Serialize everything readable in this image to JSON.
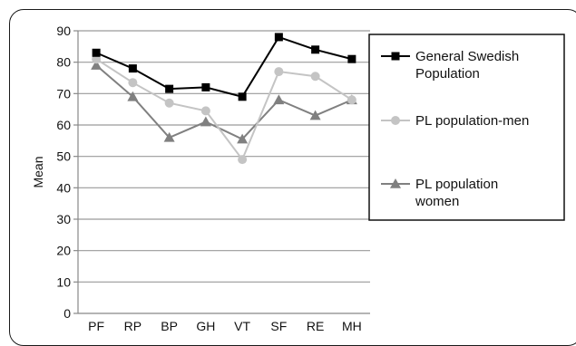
{
  "chart_data": {
    "type": "line",
    "title": "",
    "xlabel": "",
    "ylabel": "Mean",
    "ylim": [
      0,
      90
    ],
    "yticks": [
      0,
      10,
      20,
      30,
      40,
      50,
      60,
      70,
      80,
      90
    ],
    "grid": true,
    "legend_position": "right",
    "categories": [
      "PF",
      "RP",
      "BP",
      "GH",
      "VT",
      "SF",
      "RE",
      "MH"
    ],
    "series": [
      {
        "name": "General Swedish Population",
        "legend_lines": [
          "General Swedish",
          "Population"
        ],
        "color": "#000000",
        "marker": "square",
        "values": [
          83,
          78,
          71.5,
          72,
          69,
          88,
          84,
          81
        ]
      },
      {
        "name": "PL population-men",
        "legend_lines": [
          "PL population-men"
        ],
        "color": "#c4c4c4",
        "marker": "circle",
        "values": [
          81,
          73.5,
          67,
          64.5,
          49,
          77,
          75.5,
          68
        ]
      },
      {
        "name": "PL population women",
        "legend_lines": [
          "PL population",
          "women"
        ],
        "color": "#808080",
        "marker": "triangle",
        "values": [
          79,
          69,
          56,
          61,
          55.5,
          68,
          63,
          68
        ]
      }
    ]
  }
}
